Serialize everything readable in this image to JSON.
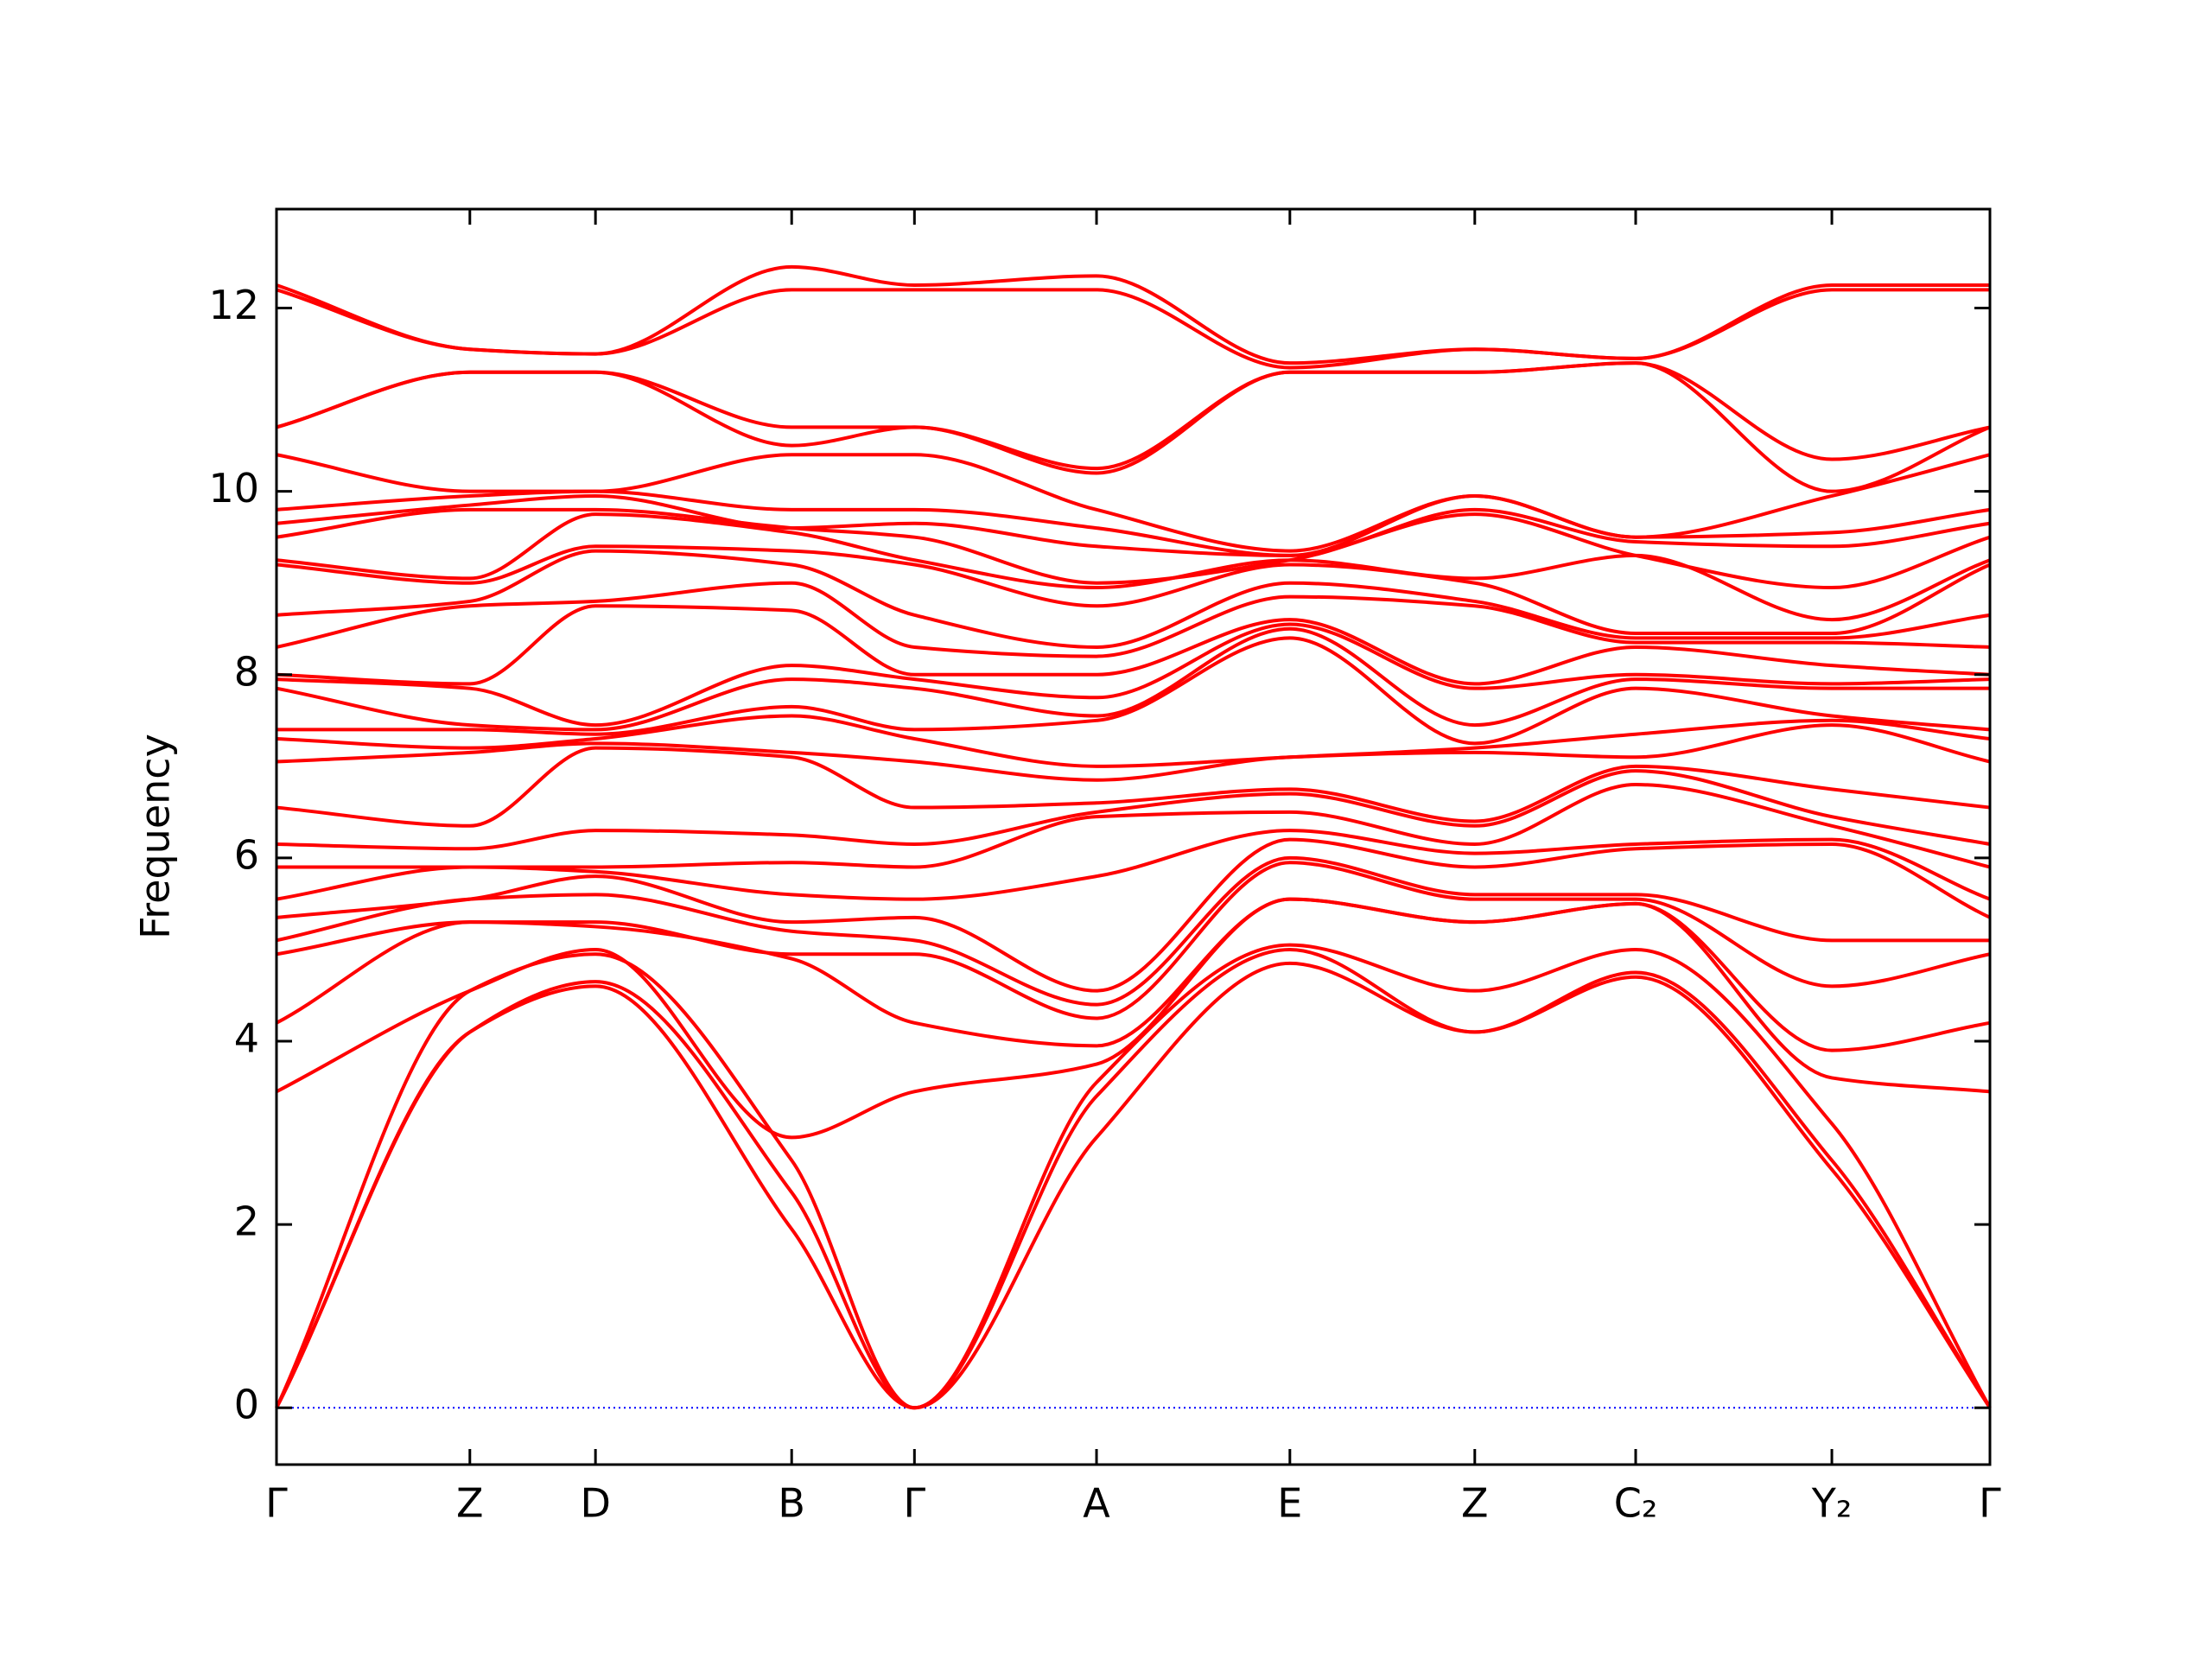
{
  "chart_data": {
    "type": "line",
    "y_label": "Frequency",
    "x": [
      0,
      1.37,
      2.26,
      3.65,
      4.52,
      5.81,
      7.18,
      8.49,
      9.63,
      11.02,
      12.14
    ],
    "xlim": [
      0,
      12.14
    ],
    "xticks": [
      {
        "value": 0,
        "label": "Γ"
      },
      {
        "value": 1.37,
        "label": "Z"
      },
      {
        "value": 2.26,
        "label": "D"
      },
      {
        "value": 3.65,
        "label": "B"
      },
      {
        "value": 4.52,
        "label": "Γ"
      },
      {
        "value": 5.81,
        "label": "A"
      },
      {
        "value": 7.18,
        "label": "E"
      },
      {
        "value": 8.49,
        "label": "Z"
      },
      {
        "value": 9.63,
        "label": "C₂"
      },
      {
        "value": 11.02,
        "label": "Y₂"
      },
      {
        "value": 12.14,
        "label": "Γ"
      }
    ],
    "ylim": [
      -0.62,
      13.08
    ],
    "yticks": [
      0,
      2,
      4,
      6,
      8,
      10,
      12
    ],
    "zero_line": 0,
    "color": "#ff0000",
    "series": [
      {
        "values": [
          0,
          4.1,
          4.6,
          1.95,
          0,
          2.95,
          4.85,
          4.1,
          4.7,
          2.6,
          0
        ]
      },
      {
        "values": [
          0,
          4.1,
          4.65,
          2.35,
          0,
          3.4,
          5.0,
          4.1,
          4.75,
          2.7,
          0
        ]
      },
      {
        "values": [
          0,
          4.55,
          4.95,
          2.7,
          0,
          3.55,
          5.05,
          4.55,
          5.0,
          3.1,
          0
        ]
      },
      {
        "values": [
          3.45,
          4.55,
          5.0,
          2.95,
          3.45,
          3.75,
          5.55,
          5.3,
          5.5,
          3.6,
          3.45
        ]
      },
      {
        "values": [
          4.2,
          5.3,
          5.25,
          4.9,
          4.2,
          3.95,
          5.55,
          5.3,
          5.5,
          3.9,
          4.2
        ]
      },
      {
        "values": [
          4.95,
          5.3,
          5.3,
          4.95,
          4.95,
          4.25,
          5.95,
          5.55,
          5.55,
          4.6,
          4.95
        ]
      },
      {
        "values": [
          5.1,
          5.55,
          5.6,
          5.2,
          5.1,
          4.4,
          6.0,
          5.6,
          5.6,
          5.1,
          5.1
        ]
      },
      {
        "values": [
          5.35,
          5.55,
          5.8,
          5.3,
          5.35,
          4.55,
          6.2,
          5.9,
          6.1,
          6.15,
          5.35
        ]
      },
      {
        "values": [
          5.55,
          5.9,
          5.85,
          5.6,
          5.55,
          5.8,
          6.3,
          6.05,
          6.15,
          6.2,
          5.55
        ]
      },
      {
        "values": [
          5.9,
          5.9,
          5.9,
          5.95,
          5.9,
          6.45,
          6.5,
          6.15,
          6.8,
          6.35,
          5.9
        ]
      },
      {
        "values": [
          6.15,
          6.1,
          6.3,
          6.25,
          6.15,
          6.5,
          6.7,
          6.35,
          6.95,
          6.45,
          6.15
        ]
      },
      {
        "values": [
          6.55,
          6.35,
          7.2,
          7.1,
          6.55,
          6.6,
          6.75,
          6.4,
          7.0,
          6.75,
          6.55
        ]
      },
      {
        "values": [
          7.05,
          7.15,
          7.25,
          7.15,
          7.05,
          6.85,
          7.1,
          7.15,
          7.1,
          7.45,
          7.05
        ]
      },
      {
        "values": [
          7.3,
          7.2,
          7.3,
          7.55,
          7.3,
          7.0,
          7.1,
          7.2,
          7.35,
          7.5,
          7.3
        ]
      },
      {
        "values": [
          7.4,
          7.4,
          7.35,
          7.65,
          7.4,
          7.5,
          8.4,
          7.25,
          7.85,
          7.55,
          7.4
        ]
      },
      {
        "values": [
          7.85,
          7.45,
          7.4,
          7.95,
          7.85,
          7.55,
          8.5,
          7.45,
          7.95,
          7.85,
          7.85
        ]
      },
      {
        "values": [
          7.95,
          7.85,
          7.45,
          8.1,
          7.95,
          7.75,
          8.55,
          7.85,
          8.0,
          7.9,
          7.95
        ]
      },
      {
        "values": [
          8.0,
          7.9,
          8.75,
          8.7,
          8.0,
          8.0,
          8.6,
          7.9,
          8.3,
          8.1,
          8.0
        ]
      },
      {
        "values": [
          8.3,
          8.75,
          8.8,
          9.0,
          8.3,
          8.2,
          8.85,
          8.75,
          8.35,
          8.35,
          8.3
        ]
      },
      {
        "values": [
          8.65,
          8.8,
          9.35,
          9.2,
          8.65,
          8.3,
          9.0,
          8.8,
          8.4,
          8.4,
          8.65
        ]
      },
      {
        "values": [
          9.2,
          9.0,
          9.4,
          9.35,
          9.2,
          8.75,
          9.2,
          9.0,
          8.45,
          8.45,
          9.2
        ]
      },
      {
        "values": [
          9.25,
          9.05,
          9.75,
          9.55,
          9.25,
          8.95,
          9.25,
          9.05,
          9.3,
          8.6,
          9.25
        ]
      },
      {
        "values": [
          9.5,
          9.8,
          9.8,
          9.6,
          9.5,
          9.0,
          9.25,
          9.75,
          9.3,
          8.95,
          9.5
        ]
      },
      {
        "values": [
          9.65,
          9.85,
          9.95,
          9.6,
          9.65,
          9.4,
          9.3,
          9.8,
          9.45,
          9.4,
          9.65
        ]
      },
      {
        "values": [
          9.8,
          9.95,
          10.0,
          9.8,
          9.8,
          9.6,
          9.3,
          9.95,
          9.5,
          9.55,
          9.8
        ]
      },
      {
        "values": [
          10.4,
          10.0,
          10.0,
          10.4,
          10.4,
          9.8,
          9.35,
          9.95,
          9.5,
          9.95,
          10.4
        ]
      },
      {
        "values": [
          10.7,
          11.3,
          11.3,
          10.5,
          10.7,
          10.2,
          11.3,
          11.3,
          11.4,
          10.0,
          10.7
        ]
      },
      {
        "values": [
          10.7,
          11.3,
          11.3,
          10.7,
          10.7,
          10.25,
          11.3,
          11.3,
          11.4,
          10.35,
          10.7
        ]
      },
      {
        "values": [
          12.2,
          11.55,
          11.5,
          12.2,
          12.2,
          12.2,
          11.35,
          11.55,
          11.45,
          12.2,
          12.2
        ]
      },
      {
        "values": [
          12.25,
          11.55,
          11.5,
          12.45,
          12.25,
          12.35,
          11.4,
          11.55,
          11.45,
          12.25,
          12.25
        ]
      }
    ]
  }
}
